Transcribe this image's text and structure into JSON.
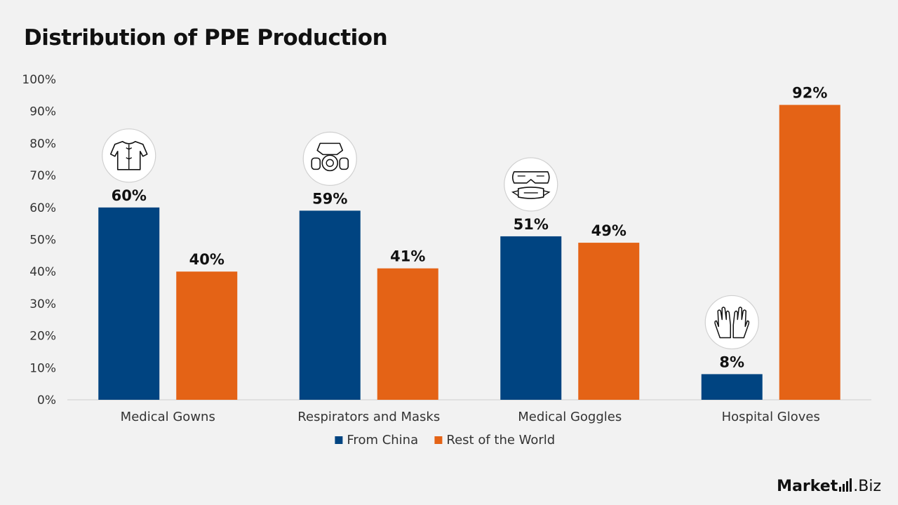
{
  "chart_data": {
    "type": "bar",
    "title": "Distribution of PPE Production",
    "categories": [
      "Medical Gowns",
      "Respirators and Masks",
      "Medical Goggles",
      "Hospital Gloves"
    ],
    "category_icons": [
      "gown-icon",
      "respirator-icon",
      "goggles-icon",
      "gloves-icon"
    ],
    "series": [
      {
        "name": "From China",
        "values": [
          60,
          59,
          51,
          8
        ],
        "color": "#004481",
        "labels": [
          "60%",
          "59%",
          "51%",
          "8%"
        ]
      },
      {
        "name": "Rest of the World",
        "values": [
          40,
          41,
          49,
          92
        ],
        "color": "#e46316",
        "labels": [
          "40%",
          "41%",
          "49%",
          "92%"
        ]
      }
    ],
    "ylim": [
      0,
      100
    ],
    "yticks": [
      0,
      10,
      20,
      30,
      40,
      50,
      60,
      70,
      80,
      90,
      100
    ],
    "ytick_labels": [
      "0%",
      "10%",
      "20%",
      "30%",
      "40%",
      "50%",
      "60%",
      "70%",
      "80%",
      "90%",
      "100%"
    ],
    "xlabel": "",
    "ylabel": "",
    "grid": false,
    "legend": "bottom"
  },
  "branding": {
    "name": "Market",
    "suffix": ".Biz"
  }
}
